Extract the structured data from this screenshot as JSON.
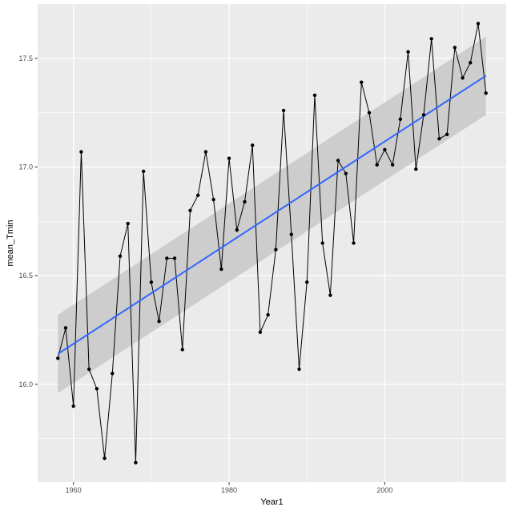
{
  "chart_data": {
    "type": "line",
    "title": "",
    "xlabel": "Year1",
    "ylabel": "mean_Tmin",
    "xlim": [
      1955.4,
      2015.6
    ],
    "ylim": [
      15.55,
      17.75
    ],
    "x_ticks": [
      1960,
      1980,
      2000
    ],
    "x_tick_labels": [
      "1960",
      "1980",
      "2000"
    ],
    "y_ticks": [
      16.0,
      16.5,
      17.0,
      17.5
    ],
    "y_tick_labels": [
      "16.0",
      "16.5",
      "17.0",
      "17.5"
    ],
    "grid": true,
    "legend": "none",
    "series": [
      {
        "x": [
          1958,
          1959,
          1960,
          1961,
          1962,
          1963,
          1964,
          1965,
          1966,
          1967,
          1968,
          1969,
          1970,
          1971,
          1972,
          1973,
          1974,
          1975,
          1976,
          1977,
          1978,
          1979,
          1980,
          1981,
          1982,
          1983,
          1984,
          1985,
          1986,
          1987,
          1988,
          1989,
          1990,
          1991,
          1992,
          1993,
          1994,
          1995,
          1996,
          1997,
          1998,
          1999,
          2000,
          2001,
          2002,
          2003,
          2004,
          2005,
          2006,
          2007,
          2008,
          2009,
          2010,
          2011,
          2012,
          2013
        ],
        "values": [
          16.12,
          16.26,
          15.9,
          17.07,
          16.07,
          15.98,
          15.66,
          16.05,
          16.59,
          16.74,
          15.64,
          16.98,
          16.47,
          16.29,
          16.58,
          16.58,
          16.16,
          16.8,
          16.87,
          17.07,
          16.85,
          16.53,
          17.04,
          16.71,
          16.84,
          17.1,
          16.24,
          16.32,
          16.62,
          17.26,
          16.69,
          16.07,
          16.47,
          17.33,
          16.65,
          16.41,
          17.03,
          16.97,
          16.65,
          17.39,
          17.25,
          17.01,
          17.08,
          17.01,
          17.22,
          17.53,
          16.99,
          17.24,
          17.59,
          17.13,
          17.15,
          17.55,
          17.41,
          17.48,
          17.66,
          17.34
        ]
      }
    ],
    "trend": {
      "method": "linear fit",
      "start": [
        1958,
        16.14
      ],
      "end": [
        2013,
        17.42
      ],
      "band_lower_start": 15.96,
      "band_upper_start": 16.32,
      "band_lower_end": 17.24,
      "band_upper_end": 17.6
    },
    "colors": {
      "panel_bg": "#ebebeb",
      "grid": "#ffffff",
      "line": "#000000",
      "points": "#000000",
      "trend": "#3366ff",
      "band": "#c8c8c8"
    }
  }
}
